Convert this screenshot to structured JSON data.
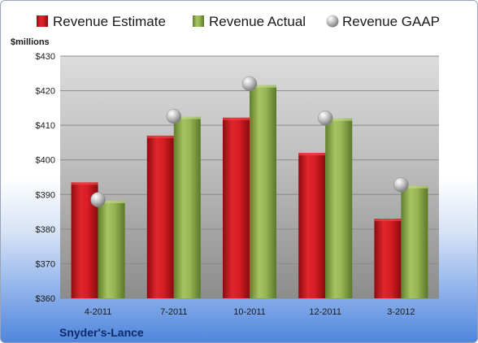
{
  "chart_data": {
    "type": "bar",
    "categories": [
      "4-2011",
      "7-2011",
      "10-2011",
      "12-2011",
      "3-2012"
    ],
    "series": [
      {
        "name": "Revenue Estimate",
        "kind": "bar",
        "color": "#c8161d",
        "values": [
          393.5,
          407.0,
          412.2,
          402.0,
          383.0
        ]
      },
      {
        "name": "Revenue Actual",
        "kind": "bar",
        "color": "#8aac4a",
        "values": [
          388.2,
          412.5,
          421.6,
          412.0,
          392.5
        ]
      },
      {
        "name": "Revenue GAAP",
        "kind": "marker",
        "color": "#b5b5b5",
        "values": [
          388.5,
          412.6,
          422.0,
          412.1,
          392.8
        ]
      }
    ],
    "ylabel": "$millions",
    "ylim": [
      360,
      430
    ],
    "yticks": [
      "$360",
      "$370",
      "$380",
      "$390",
      "$400",
      "$410",
      "$420",
      "$430"
    ],
    "ytick_values": [
      360,
      370,
      380,
      390,
      400,
      410,
      420,
      430
    ],
    "grid": true,
    "legend_position": "top"
  },
  "company": "Snyder's-Lance"
}
